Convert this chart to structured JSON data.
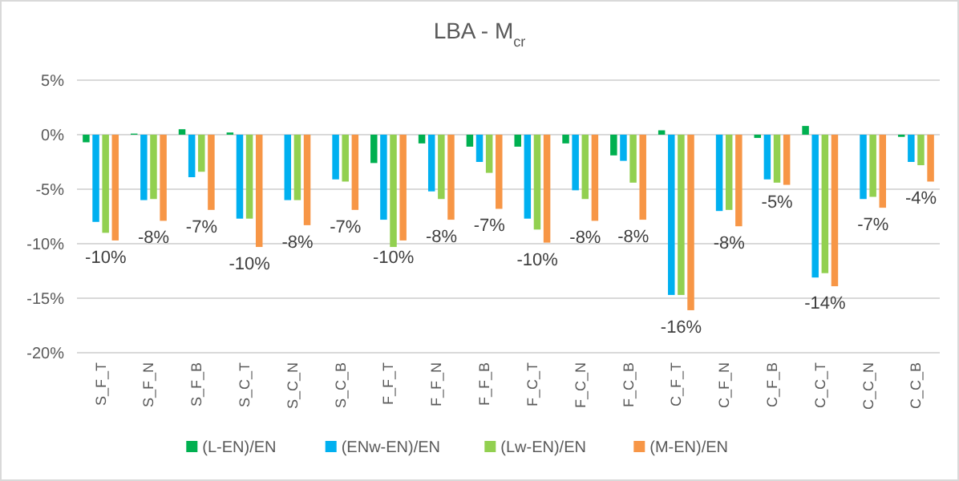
{
  "chart_data": {
    "type": "bar",
    "title": "LBA - M$_{cr}$",
    "categories": [
      "S_F_T",
      "S_F_N",
      "S_F_B",
      "S_C_T",
      "S_C_N",
      "S_C_B",
      "F_F_T",
      "F_F_N",
      "F_F_B",
      "F_C_T",
      "F_C_N",
      "F_C_B",
      "C_F_T",
      "C_F_N",
      "C_F_B",
      "C_C_T",
      "C_C_N",
      "C_C_B"
    ],
    "series": [
      {
        "name": "(L-EN)/EN",
        "color": "#00b050",
        "values": [
          -0.7,
          0.1,
          0.5,
          0.2,
          0,
          0,
          -2.6,
          -0.8,
          -1.1,
          -1.1,
          -0.8,
          -1.9,
          0.4,
          0,
          -0.3,
          0.8,
          0,
          -0.2
        ]
      },
      {
        "name": "(ENw-EN)/EN",
        "color": "#00b0f0",
        "values": [
          -8.0,
          -6.0,
          -3.9,
          -7.7,
          -6.0,
          -4.1,
          -7.8,
          -5.2,
          -2.5,
          -7.7,
          -5.1,
          -2.4,
          -14.7,
          -7.0,
          -4.1,
          -13.1,
          -5.9,
          -2.5
        ]
      },
      {
        "name": "(Lw-EN)/EN",
        "color": "#92d050",
        "values": [
          -9.0,
          -5.9,
          -3.4,
          -7.7,
          -6.0,
          -4.3,
          -10.3,
          -5.9,
          -3.5,
          -8.7,
          -5.9,
          -4.4,
          -14.7,
          -6.9,
          -4.4,
          -12.7,
          -5.7,
          -2.8
        ]
      },
      {
        "name": "(M-EN)/EN",
        "color": "#f79646",
        "values": [
          -9.7,
          -7.9,
          -6.9,
          -10.3,
          -8.3,
          -6.9,
          -9.7,
          -7.8,
          -6.8,
          -9.9,
          -7.9,
          -7.8,
          -16.1,
          -8.4,
          -4.6,
          -13.9,
          -6.7,
          -4.3
        ],
        "value_labels": [
          "-10%",
          "-8%",
          "-7%",
          "-10%",
          "-8%",
          "-7%",
          "-10%",
          "-8%",
          "-7%",
          "-10%",
          "-8%",
          "-8%",
          "-16%",
          "-8%",
          "-5%",
          "-14%",
          "-7%",
          "-4%"
        ]
      }
    ],
    "ylim": [
      -20,
      5
    ],
    "yticks": [
      {
        "value": -20,
        "label": "-20%"
      },
      {
        "value": -15,
        "label": "-15%"
      },
      {
        "value": -10,
        "label": "-10%"
      },
      {
        "value": -5,
        "label": "-5%"
      },
      {
        "value": 0,
        "label": "0%"
      },
      {
        "value": 5,
        "label": "5%"
      }
    ],
    "grid": "y",
    "legend": "bottom"
  }
}
